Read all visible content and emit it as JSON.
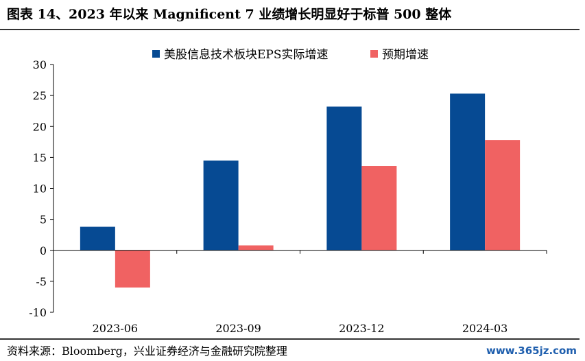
{
  "header": {
    "title": "图表 14、2023 年以来 Magnificent 7 业绩增长明显好于标普 500 整体"
  },
  "footer": {
    "source": "资料来源：Bloomberg，兴业证券经济与金融研究院整理",
    "watermark": "www.365jz.com"
  },
  "chart_data": {
    "type": "bar",
    "categories": [
      "2023-06",
      "2023-09",
      "2023-12",
      "2024-03"
    ],
    "series": [
      {
        "name": "美股信息技术板块EPS实际增速",
        "values": [
          3.8,
          14.5,
          23.2,
          25.3
        ],
        "color": "#064a93"
      },
      {
        "name": "预期增速",
        "values": [
          -6.0,
          0.8,
          13.6,
          17.8
        ],
        "color": "#f06262"
      }
    ],
    "ylim": [
      -10,
      30
    ],
    "yticks": [
      -10,
      -5,
      0,
      5,
      10,
      15,
      20,
      25,
      30
    ],
    "xlabel": "",
    "ylabel": "",
    "grid": false,
    "legend": "top"
  }
}
